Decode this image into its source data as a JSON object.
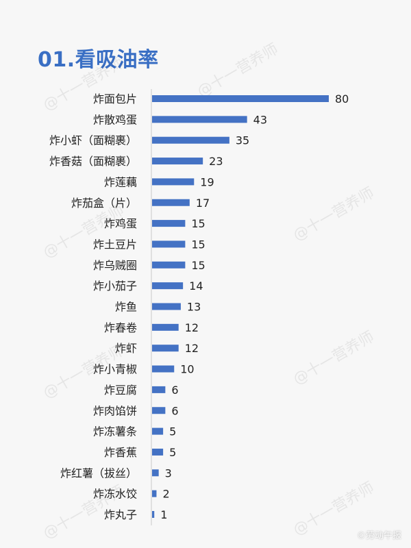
{
  "title": "01.看吸油率",
  "watermark": "@十一营养师",
  "brand": "©劳动午报",
  "colors": {
    "bar": "#4472c4",
    "axis": "#c9c9c9",
    "title": "#3a6fc4"
  },
  "chart_data": {
    "type": "bar",
    "orientation": "horizontal",
    "title": "",
    "xlabel": "",
    "ylabel": "",
    "xlim": [
      0,
      80
    ],
    "categories": [
      "炸面包片",
      "炸散鸡蛋",
      "炸小虾（面糊裹）",
      "炸香菇（面糊裹）",
      "炸莲藕",
      "炸茄盒（片）",
      "炸鸡蛋",
      "炸土豆片",
      "炸乌贼圈",
      "炸小茄子",
      "炸鱼",
      "炸春卷",
      "炸虾",
      "炸小青椒",
      "炸豆腐",
      "炸肉馅饼",
      "炸冻薯条",
      "炸香蕉",
      "炸红薯（拔丝）",
      "炸冻水饺",
      "炸丸子"
    ],
    "values": [
      80,
      43,
      35,
      23,
      19,
      17,
      15,
      15,
      15,
      14,
      13,
      12,
      12,
      10,
      6,
      6,
      5,
      5,
      3,
      2,
      1
    ],
    "data_labels": true,
    "legend": "none",
    "grid": false
  }
}
